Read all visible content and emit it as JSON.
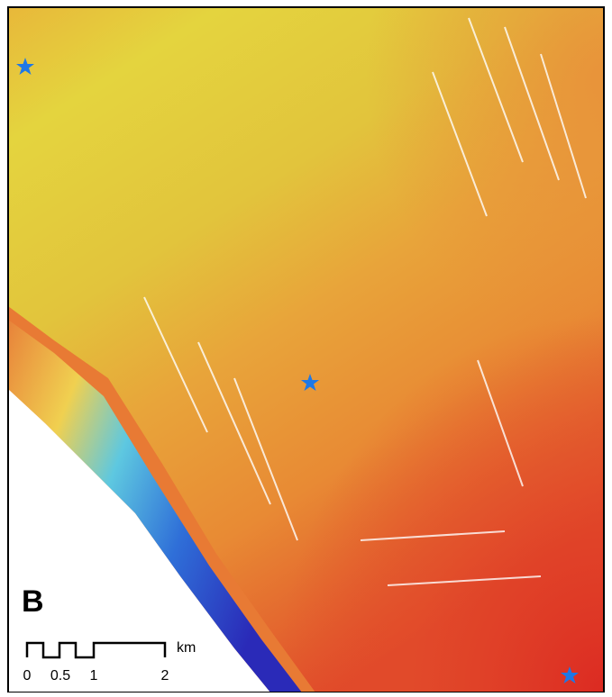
{
  "panel_label": "B",
  "scale_bar": {
    "labels": [
      "0",
      "0.5",
      "1",
      "2"
    ],
    "unit": "km"
  }
}
